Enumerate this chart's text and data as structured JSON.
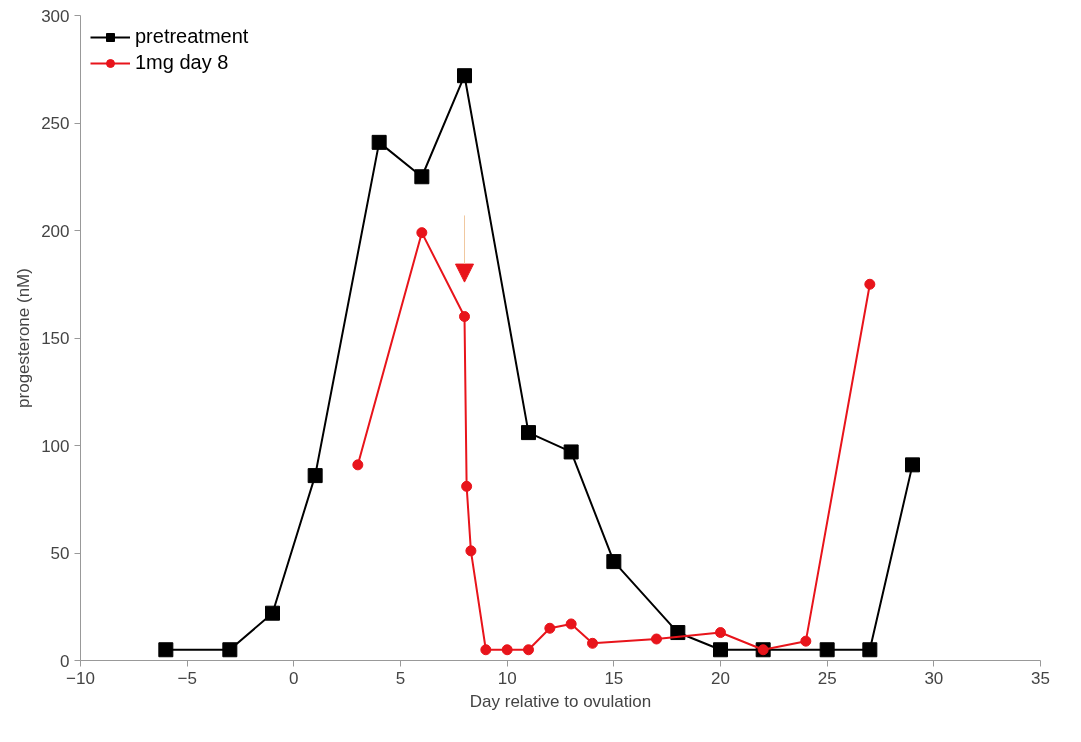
{
  "chart_data": {
    "type": "line",
    "xlabel": "Day relative to ovulation",
    "ylabel": "progesterone (nM)",
    "xlim": [
      -10,
      35
    ],
    "xticks": [
      -10,
      -5,
      0,
      5,
      10,
      15,
      20,
      25,
      30,
      35
    ],
    "ylim": [
      0,
      300
    ],
    "yticks": [
      0,
      50,
      100,
      150,
      200,
      250,
      300
    ],
    "grid": false,
    "legend": "top left",
    "series": [
      {
        "name": "pretreatment",
        "color": "#000000",
        "marker": "square",
        "x": [
          -6,
          -3,
          -1,
          1,
          4,
          6,
          8,
          11,
          13,
          15,
          18,
          20,
          22,
          25,
          27,
          29
        ],
        "values": [
          5,
          5,
          22,
          86,
          241,
          225,
          272,
          106,
          97,
          46,
          13,
          5,
          5,
          5,
          5,
          91
        ]
      },
      {
        "name": "1mg day 8",
        "color": "#e8141b",
        "marker": "circle",
        "x": [
          3,
          6,
          8,
          8.1,
          8.3,
          9,
          10,
          11,
          12,
          13,
          14,
          17,
          20,
          22,
          24,
          27
        ],
        "values": [
          91,
          199,
          160,
          81,
          51,
          5,
          5,
          5,
          15,
          17,
          8,
          10,
          13,
          5,
          9,
          175
        ]
      }
    ]
  }
}
